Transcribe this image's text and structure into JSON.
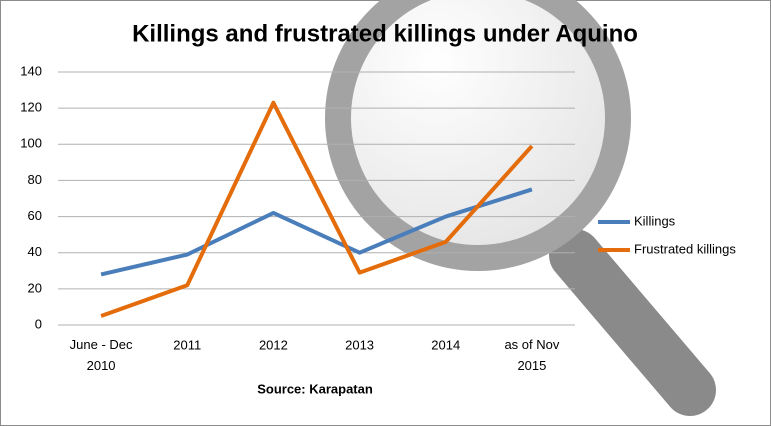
{
  "chart_data": {
    "type": "line",
    "title": "Killings and frustrated killings under Aquino",
    "x_label": "Source: Karapatan",
    "categories": [
      "June - Dec 2010",
      "2011",
      "2012",
      "2013",
      "2014",
      "as of Nov 2015"
    ],
    "series": [
      {
        "name": "Killings",
        "color": "#4a7ebb",
        "values": [
          28,
          39,
          62,
          40,
          60,
          75
        ]
      },
      {
        "name": "Frustrated killings",
        "color": "#e46c0a",
        "values": [
          5,
          22,
          123,
          29,
          46,
          99
        ]
      }
    ],
    "ylim": [
      0,
      140
    ],
    "yticks": [
      0,
      20,
      40,
      60,
      80,
      100,
      120,
      140
    ],
    "grid": true,
    "legend": "right"
  }
}
